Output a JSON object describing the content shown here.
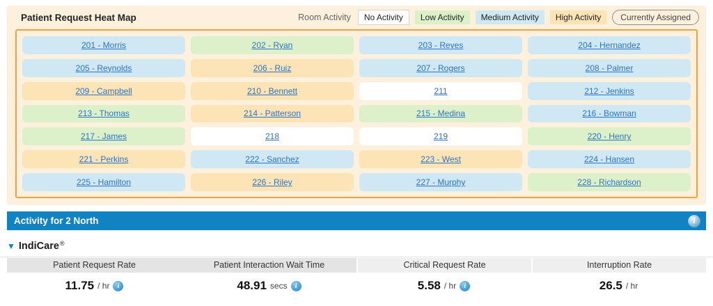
{
  "header": {
    "title": "Patient Request Heat Map",
    "legend_label": "Room Activity",
    "legend": [
      {
        "key": "none",
        "label": "No Activity"
      },
      {
        "key": "low",
        "label": "Low Activity"
      },
      {
        "key": "medium",
        "label": "Medium Activity"
      },
      {
        "key": "high",
        "label": "High Activity"
      }
    ],
    "assigned_label": "Currently Assigned"
  },
  "colors": {
    "panel_bg": "#fdf0dc",
    "grid_border": "#f0a243",
    "activity_none": "#ffffff",
    "activity_low": "#dcf1c9",
    "activity_medium": "#cfe8f4",
    "activity_high": "#fce4b7",
    "link": "#2d74c8",
    "bar_bg": "#1283c2"
  },
  "rooms": [
    {
      "number": "201",
      "label": "201 - Morris",
      "activity": "medium"
    },
    {
      "number": "202",
      "label": "202 - Ryan",
      "activity": "low"
    },
    {
      "number": "203",
      "label": "203 - Reyes",
      "activity": "medium"
    },
    {
      "number": "204",
      "label": "204 - Hernandez",
      "activity": "medium"
    },
    {
      "number": "205",
      "label": "205 - Reynolds",
      "activity": "medium"
    },
    {
      "number": "206",
      "label": "206 - Ruiz",
      "activity": "high"
    },
    {
      "number": "207",
      "label": "207 - Rogers",
      "activity": "medium"
    },
    {
      "number": "208",
      "label": "208 - Palmer",
      "activity": "medium"
    },
    {
      "number": "209",
      "label": "209 - Campbell",
      "activity": "high"
    },
    {
      "number": "210",
      "label": "210 - Bennett",
      "activity": "high"
    },
    {
      "number": "211",
      "label": "211",
      "activity": "none"
    },
    {
      "number": "212",
      "label": "212 - Jenkins",
      "activity": "medium"
    },
    {
      "number": "213",
      "label": "213 - Thomas",
      "activity": "low"
    },
    {
      "number": "214",
      "label": "214 - Patterson",
      "activity": "high"
    },
    {
      "number": "215",
      "label": "215 - Medina",
      "activity": "low"
    },
    {
      "number": "216",
      "label": "216 - Bowman",
      "activity": "medium"
    },
    {
      "number": "217",
      "label": "217 - James",
      "activity": "low"
    },
    {
      "number": "218",
      "label": "218",
      "activity": "none"
    },
    {
      "number": "219",
      "label": "219",
      "activity": "none"
    },
    {
      "number": "220",
      "label": "220 - Henry",
      "activity": "low"
    },
    {
      "number": "221",
      "label": "221 - Perkins",
      "activity": "high"
    },
    {
      "number": "222",
      "label": "222 - Sanchez",
      "activity": "medium"
    },
    {
      "number": "223",
      "label": "223 - West",
      "activity": "high"
    },
    {
      "number": "224",
      "label": "224 - Hansen",
      "activity": "medium"
    },
    {
      "number": "225",
      "label": "225 - Hamilton",
      "activity": "medium"
    },
    {
      "number": "226",
      "label": "226 - Riley",
      "activity": "high"
    },
    {
      "number": "227",
      "label": "227 - Murphy",
      "activity": "medium"
    },
    {
      "number": "228",
      "label": "228 - Richardson",
      "activity": "low"
    }
  ],
  "activity_bar": {
    "title": "Activity for 2 North",
    "info_icon": "i"
  },
  "indicare": {
    "title": "IndiCare",
    "registered": "®",
    "collapse_icon": "▼"
  },
  "metrics": [
    {
      "label": "Patient Request Rate",
      "value": "11.75",
      "unit": "/ hr",
      "info": true,
      "shade": "dark"
    },
    {
      "label": "Patient Interaction Wait Time",
      "value": "48.91",
      "unit": "secs",
      "info": true,
      "shade": "dark"
    },
    {
      "label": "Critical Request Rate",
      "value": "5.58",
      "unit": "/ hr",
      "info": true,
      "shade": "light"
    },
    {
      "label": "Interruption Rate",
      "value": "26.5",
      "unit": "/ hr",
      "info": false,
      "shade": "light"
    }
  ]
}
